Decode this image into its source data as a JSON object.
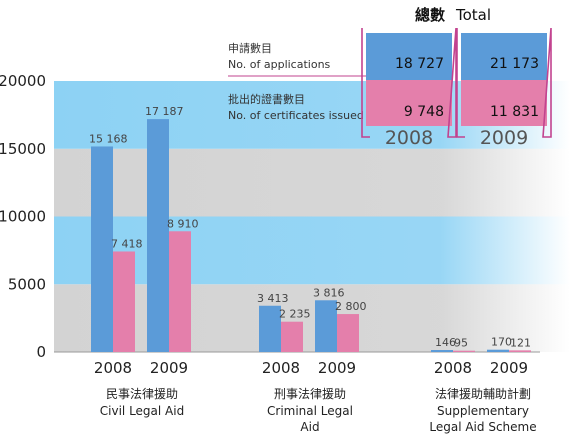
{
  "colors": {
    "applications": "#5b9bd8",
    "certificates": "#e47fab",
    "band_blue": "#8dd2f4",
    "band_grey": "#d3d3d3",
    "bracket": "#c2438f",
    "text": "#222222",
    "year_text": "#555555"
  },
  "legend": {
    "applications_zh": "申請數目",
    "applications_en": "No. of applications",
    "certificates_zh": "批出的證書數目",
    "certificates_en": "No. of certificates issued"
  },
  "total_box": {
    "title_zh": "總數",
    "title_en": "Total",
    "columns": [
      {
        "year": "2008",
        "applications": "18 727",
        "certificates": "9 748"
      },
      {
        "year": "2009",
        "applications": "21 173",
        "certificates": "11 831"
      }
    ]
  },
  "chart_data": {
    "type": "bar",
    "ylim": [
      0,
      20000
    ],
    "yticks": [
      0,
      5000,
      10000,
      15000,
      20000
    ],
    "ytick_labels": [
      "0",
      "5000",
      "10000",
      "15000",
      "20000"
    ],
    "grid": false,
    "series": [
      {
        "key": "applications",
        "name": "No. of applications"
      },
      {
        "key": "certificates",
        "name": "No. of certificates issued"
      }
    ],
    "groups": [
      {
        "label_zh": "民事法律援助",
        "label_en": [
          "Civil Legal Aid"
        ],
        "years": [
          {
            "year": "2008",
            "applications": 15168,
            "certificates": 7418,
            "applications_label": "15 168",
            "certificates_label": "7 418"
          },
          {
            "year": "2009",
            "applications": 17187,
            "certificates": 8910,
            "applications_label": "17 187",
            "certificates_label": "8 910"
          }
        ]
      },
      {
        "label_zh": "刑事法律援助",
        "label_en": [
          "Criminal Legal",
          "Aid"
        ],
        "years": [
          {
            "year": "2008",
            "applications": 3413,
            "certificates": 2235,
            "applications_label": "3 413",
            "certificates_label": "2 235"
          },
          {
            "year": "2009",
            "applications": 3816,
            "certificates": 2800,
            "applications_label": "3 816",
            "certificates_label": "2 800"
          }
        ]
      },
      {
        "label_zh": "法律援助輔助計劃",
        "label_en": [
          "Supplementary",
          "Legal Aid Scheme"
        ],
        "years": [
          {
            "year": "2008",
            "applications": 146,
            "certificates": 95,
            "applications_label": "146",
            "certificates_label": "95"
          },
          {
            "year": "2009",
            "applications": 170,
            "certificates": 121,
            "applications_label": "170",
            "certificates_label": "121"
          }
        ]
      }
    ]
  }
}
